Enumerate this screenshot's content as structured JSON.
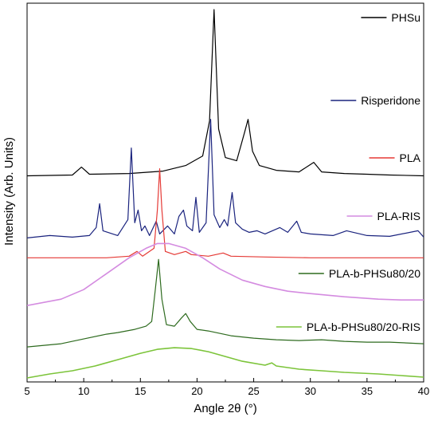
{
  "chart_data": {
    "type": "line",
    "xlabel": "Angle 2θ (°)",
    "ylabel": "Intensity (Arb. Units)",
    "xlim": [
      5,
      40
    ],
    "xticks": [
      5,
      10,
      15,
      20,
      25,
      30,
      35,
      40
    ],
    "yticks": "none",
    "grid": false,
    "legend_placement": "right of each trace",
    "series": [
      {
        "name": "PHSu",
        "color": "#000000",
        "offset": 12.7,
        "points": [
          [
            5,
            0.05
          ],
          [
            9,
            0.1
          ],
          [
            9.8,
            0.6
          ],
          [
            10.5,
            0.15
          ],
          [
            14,
            0.2
          ],
          [
            17,
            0.35
          ],
          [
            19,
            0.7
          ],
          [
            20.5,
            1.3
          ],
          [
            21.1,
            3.5
          ],
          [
            21.5,
            10.5
          ],
          [
            21.9,
            3.0
          ],
          [
            22.5,
            1.2
          ],
          [
            23.5,
            1.0
          ],
          [
            24.2,
            2.8
          ],
          [
            24.5,
            3.6
          ],
          [
            24.9,
            1.6
          ],
          [
            25.5,
            0.7
          ],
          [
            27,
            0.4
          ],
          [
            29,
            0.3
          ],
          [
            30.3,
            0.9
          ],
          [
            31,
            0.3
          ],
          [
            33,
            0.2
          ],
          [
            35,
            0.15
          ],
          [
            37,
            0.1
          ],
          [
            40,
            0.05
          ]
        ]
      },
      {
        "name": "Risperidone",
        "color": "#1a237e",
        "offset": 8.8,
        "points": [
          [
            5,
            0.05
          ],
          [
            7,
            0.2
          ],
          [
            9,
            0.1
          ],
          [
            10.5,
            0.2
          ],
          [
            11.1,
            0.7
          ],
          [
            11.4,
            2.2
          ],
          [
            11.7,
            0.5
          ],
          [
            13,
            0.2
          ],
          [
            13.9,
            1.2
          ],
          [
            14.2,
            5.7
          ],
          [
            14.5,
            1.0
          ],
          [
            14.8,
            1.8
          ],
          [
            15.1,
            0.5
          ],
          [
            15.4,
            0.8
          ],
          [
            15.8,
            0.2
          ],
          [
            16.4,
            1.1
          ],
          [
            16.7,
            0.3
          ],
          [
            17.4,
            0.8
          ],
          [
            18,
            0.3
          ],
          [
            18.4,
            1.4
          ],
          [
            18.8,
            1.8
          ],
          [
            19.1,
            0.8
          ],
          [
            19.6,
            0.5
          ],
          [
            19.9,
            2.6
          ],
          [
            20.2,
            0.4
          ],
          [
            20.8,
            1.0
          ],
          [
            21.2,
            7.5
          ],
          [
            21.5,
            1.5
          ],
          [
            22.0,
            0.7
          ],
          [
            22.4,
            1.2
          ],
          [
            22.7,
            0.8
          ],
          [
            23.1,
            2.9
          ],
          [
            23.4,
            1.0
          ],
          [
            24.0,
            0.6
          ],
          [
            24.6,
            0.4
          ],
          [
            25.3,
            0.5
          ],
          [
            26,
            0.3
          ],
          [
            27.3,
            0.7
          ],
          [
            28,
            0.4
          ],
          [
            28.8,
            1.1
          ],
          [
            29.2,
            0.4
          ],
          [
            30,
            0.3
          ],
          [
            32,
            0.2
          ],
          [
            33.2,
            0.5
          ],
          [
            35,
            0.2
          ],
          [
            37,
            0.15
          ],
          [
            39.5,
            0.5
          ],
          [
            40,
            0.1
          ]
        ]
      },
      {
        "name": "PLA",
        "color": "#e53935",
        "offset": 7.6,
        "points": [
          [
            5,
            0.0
          ],
          [
            12,
            0.0
          ],
          [
            14,
            0.1
          ],
          [
            14.7,
            0.4
          ],
          [
            15.2,
            0.1
          ],
          [
            16.2,
            0.6
          ],
          [
            16.5,
            3.0
          ],
          [
            16.7,
            5.6
          ],
          [
            16.9,
            3.0
          ],
          [
            17.2,
            0.4
          ],
          [
            18,
            0.2
          ],
          [
            19,
            0.4
          ],
          [
            19.5,
            0.2
          ],
          [
            21,
            0.1
          ],
          [
            22.3,
            0.3
          ],
          [
            23,
            0.1
          ],
          [
            26,
            0.05
          ],
          [
            30,
            0.0
          ],
          [
            40,
            0.0
          ]
        ]
      },
      {
        "name": "PLA-RIS",
        "color": "#d48be0",
        "offset": 4.6,
        "points": [
          [
            5,
            0.0
          ],
          [
            8,
            0.4
          ],
          [
            10,
            1.0
          ],
          [
            12,
            2.0
          ],
          [
            14,
            3.0
          ],
          [
            15.5,
            3.6
          ],
          [
            16.5,
            3.9
          ],
          [
            17.5,
            3.9
          ],
          [
            19,
            3.6
          ],
          [
            20.5,
            3.0
          ],
          [
            22,
            2.3
          ],
          [
            24,
            1.6
          ],
          [
            26,
            1.2
          ],
          [
            28,
            0.9
          ],
          [
            30,
            0.75
          ],
          [
            33,
            0.55
          ],
          [
            36,
            0.4
          ],
          [
            38,
            0.35
          ],
          [
            40,
            0.35
          ]
        ]
      },
      {
        "name": "PLA-b-PHSu80/20",
        "color": "#2e6b1f",
        "offset": 2.0,
        "points": [
          [
            5,
            0.0
          ],
          [
            8,
            0.2
          ],
          [
            10,
            0.5
          ],
          [
            12,
            0.8
          ],
          [
            13,
            0.9
          ],
          [
            14.5,
            1.1
          ],
          [
            15.5,
            1.3
          ],
          [
            16,
            1.6
          ],
          [
            16.3,
            3.5
          ],
          [
            16.6,
            5.5
          ],
          [
            16.9,
            3.0
          ],
          [
            17.3,
            1.4
          ],
          [
            18,
            1.3
          ],
          [
            18.6,
            1.8
          ],
          [
            19,
            2.1
          ],
          [
            19.4,
            1.6
          ],
          [
            20,
            1.1
          ],
          [
            21,
            1.0
          ],
          [
            22,
            0.85
          ],
          [
            23,
            0.7
          ],
          [
            25,
            0.55
          ],
          [
            27,
            0.45
          ],
          [
            29,
            0.4
          ],
          [
            31,
            0.45
          ],
          [
            33,
            0.35
          ],
          [
            35,
            0.3
          ],
          [
            37,
            0.3
          ],
          [
            40,
            0.2
          ]
        ]
      },
      {
        "name": "PLA-b-PHSu80/20-RIS",
        "color": "#7cc43a",
        "offset": 0.0,
        "points": [
          [
            5,
            0.05
          ],
          [
            7,
            0.3
          ],
          [
            9,
            0.5
          ],
          [
            11,
            0.8
          ],
          [
            13,
            1.2
          ],
          [
            15,
            1.6
          ],
          [
            16.5,
            1.85
          ],
          [
            18,
            1.95
          ],
          [
            19.5,
            1.9
          ],
          [
            21,
            1.7
          ],
          [
            22.5,
            1.4
          ],
          [
            24,
            1.1
          ],
          [
            26,
            0.85
          ],
          [
            26.6,
            1.0
          ],
          [
            27,
            0.8
          ],
          [
            29,
            0.6
          ],
          [
            31,
            0.5
          ],
          [
            33,
            0.4
          ],
          [
            36,
            0.3
          ],
          [
            38,
            0.2
          ],
          [
            40,
            0.1
          ]
        ]
      }
    ]
  }
}
